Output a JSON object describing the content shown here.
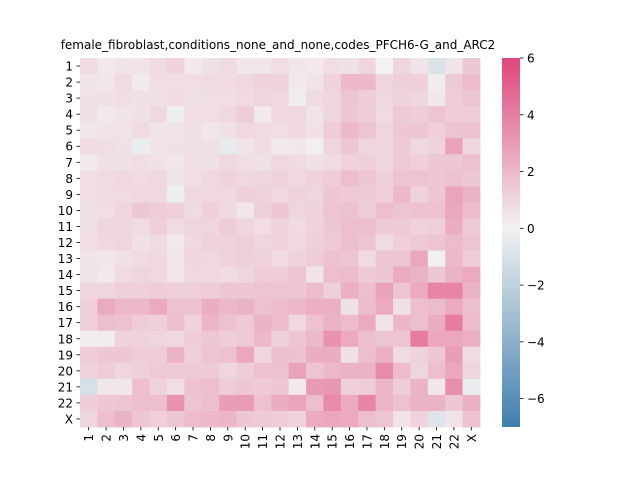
{
  "chart_data": {
    "type": "heatmap",
    "title": "female_fibroblast,conditions_none_and_none,codes_PFCH6-G_and_ARC2",
    "xlabel": "",
    "ylabel": "",
    "row_labels": [
      "1",
      "2",
      "3",
      "4",
      "5",
      "6",
      "7",
      "8",
      "9",
      "10",
      "11",
      "12",
      "13",
      "14",
      "15",
      "16",
      "17",
      "18",
      "19",
      "20",
      "21",
      "22",
      "X"
    ],
    "col_labels": [
      "1",
      "2",
      "3",
      "4",
      "5",
      "6",
      "7",
      "8",
      "9",
      "10",
      "11",
      "12",
      "13",
      "14",
      "15",
      "16",
      "17",
      "18",
      "19",
      "20",
      "21",
      "22",
      "X"
    ],
    "colorbar": {
      "min": -7,
      "max": 6,
      "ticks": [
        -6,
        -4,
        -2,
        0,
        2,
        4,
        6
      ],
      "tick_labels": [
        "−6",
        "−4",
        "−2",
        "0",
        "2",
        "4",
        "6"
      ],
      "colors": {
        "low": "#3f7fad",
        "mid": "#f2f2f2",
        "high": "#e0457b"
      }
    },
    "values": [
      [
        0.8,
        0.3,
        0.5,
        0.5,
        0.8,
        1.1,
        0.3,
        0.6,
        0.8,
        0.4,
        0.4,
        0.7,
        0.4,
        0.3,
        0.7,
        0.6,
        1.0,
        0.0,
        1.0,
        0.5,
        -0.9,
        0.5,
        1.5
      ],
      [
        0.5,
        0.4,
        0.8,
        0.3,
        0.7,
        0.7,
        0.7,
        0.8,
        0.8,
        0.9,
        1.1,
        1.1,
        0.3,
        0.5,
        1.1,
        2.0,
        2.0,
        1.0,
        1.2,
        1.2,
        0.2,
        1.4,
        1.9
      ],
      [
        0.6,
        0.6,
        0.7,
        0.6,
        0.6,
        0.8,
        0.6,
        0.7,
        0.7,
        0.8,
        1.0,
        0.9,
        0.2,
        0.8,
        1.0,
        1.6,
        1.3,
        0.9,
        1.1,
        1.0,
        0.4,
        1.3,
        1.6
      ],
      [
        0.6,
        0.3,
        0.5,
        0.6,
        0.9,
        -0.2,
        0.7,
        0.7,
        0.9,
        1.3,
        0.3,
        0.9,
        0.9,
        0.5,
        1.0,
        1.5,
        1.3,
        0.8,
        1.4,
        1.3,
        1.6,
        1.3,
        1.3
      ],
      [
        0.4,
        0.5,
        0.5,
        0.8,
        0.5,
        0.5,
        0.6,
        0.4,
        0.6,
        0.9,
        0.8,
        0.7,
        0.9,
        0.6,
        1.3,
        2.0,
        1.6,
        1.0,
        1.5,
        1.5,
        1.2,
        1.6,
        1.7
      ],
      [
        0.8,
        0.7,
        0.6,
        -0.3,
        0.5,
        0.6,
        0.7,
        0.6,
        -0.4,
        0.5,
        0.8,
        0.3,
        0.4,
        0.1,
        1.0,
        1.5,
        1.0,
        1.0,
        1.4,
        0.9,
        1.1,
        2.8,
        1.0
      ],
      [
        0.3,
        0.6,
        0.6,
        0.7,
        0.6,
        0.4,
        0.7,
        0.6,
        0.9,
        0.7,
        0.6,
        0.9,
        0.8,
        0.6,
        0.8,
        1.1,
        1.2,
        1.0,
        1.4,
        1.2,
        1.5,
        1.5,
        1.7
      ],
      [
        0.7,
        0.8,
        0.9,
        0.8,
        0.9,
        0.5,
        0.7,
        0.9,
        1.1,
        0.9,
        1.0,
        1.1,
        0.9,
        1.1,
        1.3,
        1.8,
        1.5,
        1.2,
        1.6,
        1.6,
        1.5,
        1.7,
        1.5
      ],
      [
        0.7,
        0.8,
        0.8,
        0.9,
        0.9,
        -0.2,
        0.9,
        0.9,
        0.9,
        1.2,
        1.1,
        0.9,
        1.1,
        1.0,
        1.5,
        1.4,
        1.4,
        1.2,
        2.0,
        1.1,
        1.5,
        2.7,
        2.2
      ],
      [
        0.6,
        0.7,
        1.0,
        1.5,
        1.3,
        1.2,
        0.8,
        1.2,
        0.9,
        0.4,
        1.2,
        1.5,
        1.0,
        1.1,
        1.6,
        1.7,
        1.3,
        1.8,
        1.6,
        1.7,
        1.7,
        2.6,
        1.9
      ],
      [
        0.6,
        1.0,
        1.0,
        0.8,
        1.2,
        0.8,
        1.0,
        1.0,
        1.3,
        1.0,
        0.7,
        1.1,
        0.8,
        1.1,
        1.5,
        1.8,
        1.8,
        1.4,
        1.4,
        1.1,
        1.2,
        2.4,
        1.4
      ],
      [
        0.7,
        0.9,
        1.0,
        0.6,
        0.8,
        0.3,
        0.9,
        1.1,
        1.1,
        1.2,
        1.0,
        1.1,
        0.9,
        1.2,
        1.4,
        1.8,
        1.6,
        0.8,
        1.2,
        1.4,
        1.6,
        1.9,
        1.6
      ],
      [
        0.5,
        0.4,
        0.6,
        0.8,
        0.9,
        0.4,
        1.0,
        0.9,
        1.1,
        1.2,
        1.1,
        0.8,
        1.1,
        1.3,
        1.7,
        1.6,
        0.8,
        1.5,
        1.6,
        2.6,
        0.1,
        2.0,
        1.3
      ],
      [
        0.5,
        0.3,
        0.8,
        1.0,
        0.9,
        0.4,
        0.9,
        0.9,
        0.8,
        1.0,
        1.3,
        1.3,
        1.6,
        0.5,
        1.8,
        1.9,
        1.4,
        1.5,
        2.5,
        2.2,
        1.5,
        2.2,
        2.5
      ],
      [
        1.0,
        1.0,
        1.2,
        1.2,
        1.3,
        1.2,
        1.2,
        1.3,
        1.5,
        1.5,
        1.6,
        1.6,
        1.5,
        1.9,
        1.2,
        2.3,
        1.8,
        2.8,
        1.6,
        2.5,
        3.8,
        3.8,
        2.2
      ],
      [
        1.2,
        2.5,
        2.0,
        2.0,
        2.5,
        1.7,
        1.7,
        2.4,
        2.0,
        2.2,
        1.7,
        1.9,
        2.0,
        2.3,
        2.3,
        0.6,
        1.9,
        2.5,
        0.6,
        1.8,
        1.9,
        2.5,
        1.8
      ],
      [
        1.2,
        1.8,
        1.7,
        1.3,
        1.2,
        1.8,
        1.1,
        2.1,
        1.7,
        1.4,
        2.2,
        1.9,
        0.9,
        1.7,
        2.2,
        1.9,
        2.5,
        0.5,
        2.1,
        1.8,
        2.4,
        4.1,
        1.9
      ],
      [
        0.2,
        0.2,
        1.1,
        1.1,
        1.0,
        0.9,
        1.3,
        1.5,
        1.3,
        1.4,
        2.0,
        1.2,
        1.6,
        2.0,
        3.3,
        2.5,
        1.8,
        1.6,
        1.6,
        4.1,
        2.6,
        2.6,
        2.3
      ],
      [
        1.3,
        1.5,
        1.5,
        1.3,
        1.3,
        2.2,
        1.2,
        1.6,
        1.7,
        2.6,
        1.0,
        1.8,
        1.7,
        2.4,
        2.4,
        0.6,
        1.8,
        2.3,
        0.8,
        1.1,
        1.5,
        2.9,
        0.8
      ],
      [
        1.1,
        1.3,
        1.0,
        1.2,
        1.4,
        1.4,
        1.4,
        1.4,
        1.0,
        1.3,
        1.7,
        1.7,
        2.8,
        1.6,
        2.0,
        2.2,
        2.2,
        3.6,
        1.9,
        1.0,
        1.8,
        2.6,
        1.0
      ],
      [
        -1.1,
        0.4,
        0.4,
        1.8,
        1.1,
        0.7,
        1.7,
        1.8,
        1.3,
        1.5,
        1.4,
        1.5,
        0.3,
        3.1,
        3.2,
        1.2,
        1.3,
        2.1,
        1.3,
        2.2,
        0.4,
        3.5,
        -0.3
      ],
      [
        1.3,
        1.5,
        1.6,
        1.8,
        1.8,
        3.3,
        1.6,
        1.8,
        2.9,
        3.0,
        1.7,
        2.4,
        2.7,
        1.8,
        3.6,
        2.5,
        3.8,
        2.1,
        1.7,
        2.2,
        2.2,
        1.5,
        2.3
      ],
      [
        1.0,
        1.8,
        2.2,
        1.5,
        1.2,
        1.5,
        1.9,
        2.0,
        2.1,
        1.5,
        1.4,
        1.3,
        1.1,
        2.5,
        2.6,
        2.5,
        1.8,
        1.6,
        0.5,
        1.1,
        -0.8,
        0.5,
        1.7
      ]
    ]
  }
}
